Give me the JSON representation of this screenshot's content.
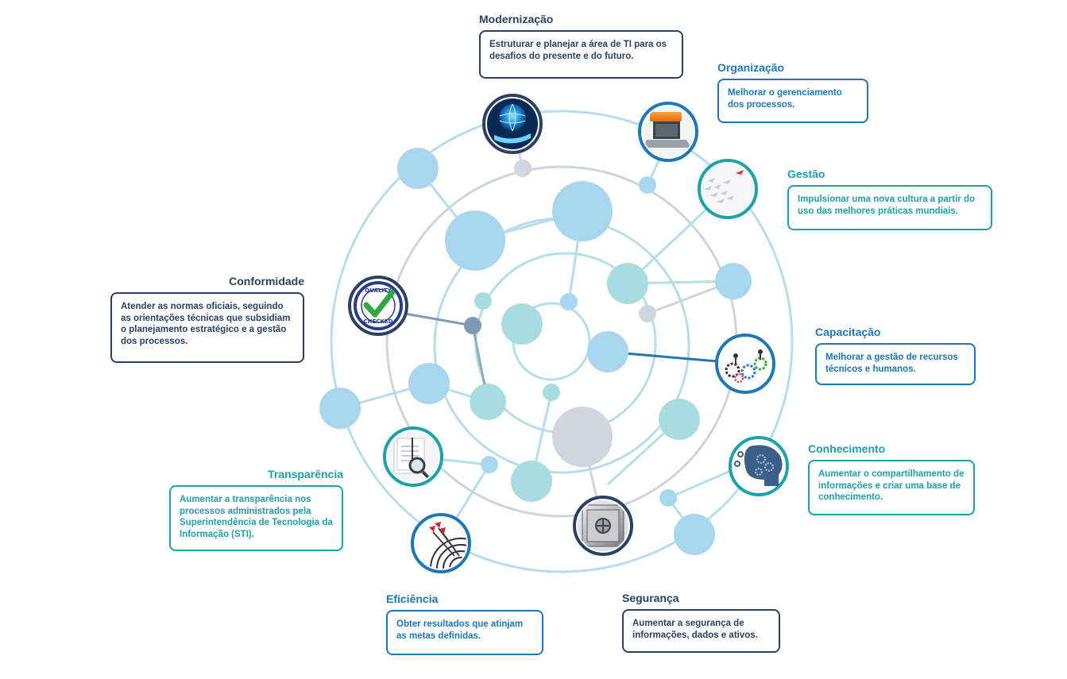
{
  "items": {
    "modernizacao": {
      "title": "Modernização",
      "text": "Estruturar e planejar a área de TI para os desafios do presente e do futuro.",
      "icon": "globe-hand-icon"
    },
    "organizacao": {
      "title": "Organização",
      "text": "Melhorar o gerenciamento dos processos.",
      "icon": "laptop-folders-icon"
    },
    "gestao": {
      "title": "Gestão",
      "text": "Impulsionar uma nova cultura a partir do uso das melhores práticas mundiais.",
      "icon": "paper-planes-icon"
    },
    "conformidade": {
      "title": "Conformidade",
      "text": "Atender as normas oficiais, seguindo as orientações técnicas que subsidiam o planejamento estratégico e a gestão dos processos.",
      "icon": "quality-checked-stamp-icon"
    },
    "capacitacao": {
      "title": "Capacitação",
      "text": "Melhorar a gestão de recursos técnicos e humanos.",
      "icon": "gears-people-icon"
    },
    "conhecimento": {
      "title": "Conhecimento",
      "text": "Aumentar o compartilhamento de informações e criar uma base de conhecimento.",
      "icon": "gear-head-icon"
    },
    "transparencia": {
      "title": "Transparência",
      "text": "Aumentar a transparência nos processos administrados pela Superintendência de Tecnologia da Informação (STI).",
      "icon": "magnifier-papers-icon"
    },
    "eficiencia": {
      "title": "Eficiência",
      "text": "Obter resultados que atinjam as metas definidas.",
      "icon": "darts-target-icon"
    },
    "seguranca": {
      "title": "Segurança",
      "text": "Aumentar a segurança de informações, dados e ativos.",
      "icon": "safe-vault-icon"
    }
  },
  "colors": {
    "navy": "#2b4160",
    "blue": "#1e78b5",
    "teal": "#1ba3a8",
    "light_blue": "#a8d6ee",
    "light_teal": "#a8dcdf",
    "gray": "#cfd6de"
  }
}
